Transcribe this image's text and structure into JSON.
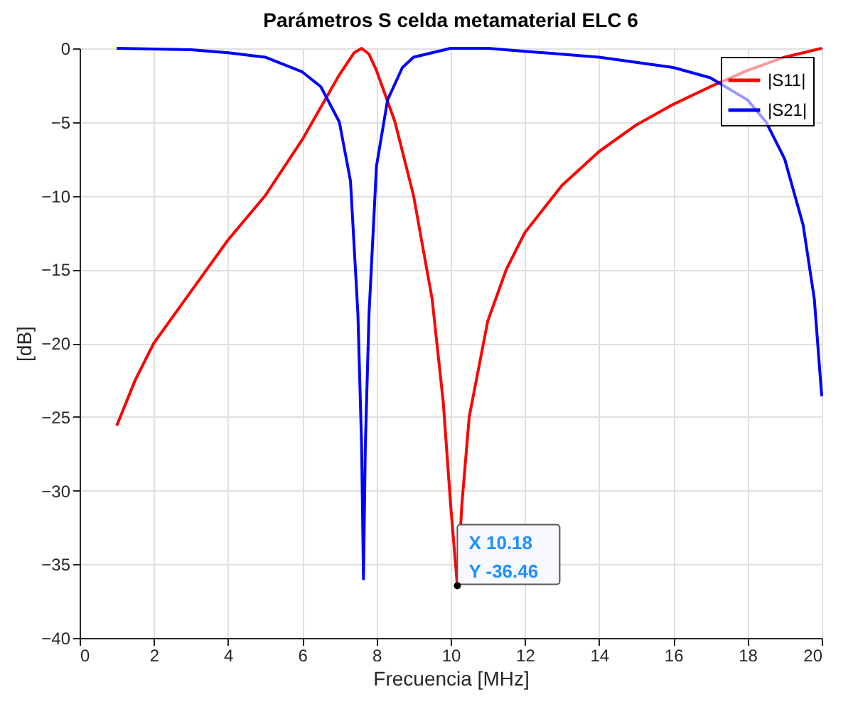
{
  "chart_data": {
    "type": "line",
    "title": "Parámetros S celda metamaterial ELC 6",
    "xlabel": "Frecuencia [MHz]",
    "ylabel": "[dB]",
    "xlim": [
      0,
      20
    ],
    "xticks": [
      0,
      2,
      4,
      6,
      8,
      10,
      12,
      14,
      16,
      18,
      20
    ],
    "ylim": [
      -40,
      0
    ],
    "yticks": [
      -40,
      -35,
      -30,
      -25,
      -20,
      -15,
      -10,
      -5,
      0
    ],
    "grid": true,
    "legend": "top right",
    "line_style": "solid",
    "series": [
      {
        "name": "|S11|",
        "color": "#ff0000",
        "x": [
          1,
          1.5,
          2,
          3,
          4,
          5,
          6,
          6.5,
          7,
          7.4,
          7.6,
          7.8,
          8,
          8.5,
          9,
          9.5,
          9.8,
          10,
          10.18,
          10.3,
          10.5,
          11,
          11.5,
          12,
          13,
          14,
          15,
          16,
          17,
          18,
          19,
          20
        ],
        "values": [
          -25.6,
          -22.5,
          -20,
          -16.5,
          -13,
          -10,
          -6.2,
          -4,
          -1.8,
          -0.3,
          0,
          -0.4,
          -1.5,
          -5,
          -10,
          -17,
          -24,
          -31,
          -36.46,
          -31,
          -25,
          -18.5,
          -15,
          -12.5,
          -9.3,
          -7,
          -5.2,
          -3.8,
          -2.6,
          -1.5,
          -0.6,
          0
        ]
      },
      {
        "name": "|S21|",
        "color": "#0000ff",
        "x": [
          1,
          3,
          4,
          5,
          6,
          6.5,
          7,
          7.3,
          7.5,
          7.6,
          7.65,
          7.7,
          7.8,
          8,
          8.3,
          8.7,
          9,
          10,
          11,
          12,
          14,
          16,
          17,
          18,
          18.5,
          19,
          19.5,
          19.8,
          20
        ],
        "values": [
          0,
          -0.1,
          -0.3,
          -0.6,
          -1.6,
          -2.6,
          -5,
          -9,
          -18,
          -27,
          -36,
          -27,
          -18,
          -8,
          -3.5,
          -1.3,
          -0.6,
          0,
          0,
          -0.2,
          -0.6,
          -1.3,
          -2,
          -3.5,
          -5,
          -7.5,
          -12,
          -17,
          -23.6
        ]
      }
    ],
    "annotations": [
      {
        "text": "X 10.18\nY -36.46",
        "x": 10.18,
        "y": -36.46
      }
    ]
  }
}
